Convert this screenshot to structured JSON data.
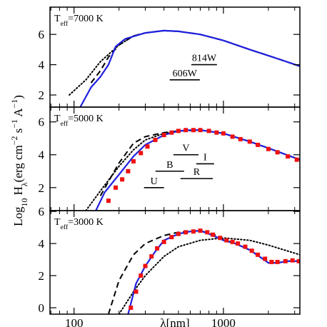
{
  "chart_data": [
    {
      "type": "line",
      "xlim": [
        69,
        3250
      ],
      "ylim": [
        1.2,
        7.8
      ],
      "log_x": true,
      "xticks": [
        100,
        1000
      ],
      "xminorticks": [
        70,
        80,
        90,
        200,
        300,
        400,
        500,
        600,
        700,
        800,
        900,
        2000,
        3000
      ],
      "yticks": [
        2,
        4,
        6
      ],
      "annotation": [
        {
          "text": "T"
        },
        {
          "text": "eff",
          "shift": "sub"
        },
        {
          "text": "=7000 K"
        }
      ],
      "bands": [
        {
          "label": "606W",
          "x": [
            437,
            695
          ],
          "y": 3.0
        },
        {
          "label": "814W",
          "x": [
            610,
            905
          ],
          "y": 4.0
        }
      ],
      "series": [
        {
          "style": "dotted",
          "color": "#000000",
          "x": [
            93,
            120,
            150,
            200,
            250,
            300,
            400,
            500,
            700,
            1000,
            1500,
            2000,
            3250
          ],
          "values": [
            2.0,
            3.0,
            4.2,
            5.3,
            5.9,
            6.1,
            6.25,
            6.2,
            6.0,
            5.6,
            5.0,
            4.6,
            3.9
          ]
        },
        {
          "style": "dashed",
          "color": "#000000",
          "x": [
            130,
            150,
            170,
            200,
            250,
            300,
            400,
            500,
            700,
            1000,
            1500,
            2000,
            3250
          ],
          "values": [
            2.8,
            3.6,
            4.5,
            5.3,
            5.9,
            6.1,
            6.25,
            6.2,
            6.0,
            5.6,
            5.0,
            4.6,
            3.9
          ]
        },
        {
          "style": "solid",
          "color": "#1f1fe0",
          "x": [
            110,
            130,
            150,
            170,
            190,
            220,
            300,
            400,
            500,
            700,
            1000,
            1500,
            2000,
            3250
          ],
          "values": [
            1.2,
            2.5,
            3.2,
            4.0,
            5.2,
            5.7,
            6.1,
            6.25,
            6.2,
            6.0,
            5.6,
            5.0,
            4.6,
            3.9
          ]
        }
      ]
    },
    {
      "type": "line",
      "xlim": [
        69,
        3250
      ],
      "ylim": [
        0.6,
        6.9
      ],
      "log_x": true,
      "xticks": [
        100,
        1000
      ],
      "xminorticks": [
        70,
        80,
        90,
        200,
        300,
        400,
        500,
        600,
        700,
        800,
        900,
        2000,
        3000
      ],
      "yticks": [
        2,
        4,
        6
      ],
      "ylabel": [
        {
          "text": "Log"
        },
        {
          "text": "10",
          "shift": "sub"
        },
        {
          "text": " H"
        },
        {
          "text": "λ",
          "shift": "sub"
        },
        {
          "text": "(erg cm"
        },
        {
          "text": "−2",
          "shift": "super"
        },
        {
          "text": " s"
        },
        {
          "text": "−1",
          "shift": "super"
        },
        {
          "text": " A"
        },
        {
          "text": "−1",
          "shift": "super"
        },
        {
          "text": ")"
        }
      ],
      "annotation": [
        {
          "text": "T"
        },
        {
          "text": "eff",
          "shift": "sub"
        },
        {
          "text": "=5000 K"
        }
      ],
      "bands": [
        {
          "label": "U",
          "x": [
            294,
            400
          ],
          "y": 2.0
        },
        {
          "label": "B",
          "x": [
            351,
            545
          ],
          "y": 3.0
        },
        {
          "label": "V",
          "x": [
            463,
            681
          ],
          "y": 4.0
        },
        {
          "label": "R",
          "x": [
            516,
            850
          ],
          "y": 2.55
        },
        {
          "label": "I",
          "x": [
            658,
            866
          ],
          "y": 3.45
        }
      ],
      "series": [
        {
          "style": "dotted",
          "color": "#000000",
          "x": [
            120,
            150,
            200,
            250,
            300,
            400,
            500,
            700,
            1000,
            1500,
            2000,
            3250
          ],
          "values": [
            0.6,
            1.8,
            3.3,
            4.3,
            4.9,
            5.3,
            5.45,
            5.5,
            5.3,
            4.8,
            4.4,
            3.7
          ]
        },
        {
          "style": "dashed",
          "color": "#000000",
          "x": [
            150,
            200,
            250,
            300,
            400,
            500,
            700,
            1000,
            1500,
            2000,
            3250
          ],
          "values": [
            1.5,
            3.5,
            4.7,
            5.1,
            5.35,
            5.45,
            5.5,
            5.3,
            4.8,
            4.4,
            3.7
          ]
        },
        {
          "style": "solid",
          "color": "#1f1fe0",
          "x": [
            140,
            160,
            200,
            250,
            300,
            400,
            500,
            600,
            700,
            1000,
            1500,
            2000,
            3250
          ],
          "values": [
            0.6,
            1.7,
            2.8,
            3.9,
            4.6,
            5.2,
            5.45,
            5.5,
            5.5,
            5.3,
            4.8,
            4.4,
            3.7
          ]
        },
        {
          "style": "markers",
          "color": "#ee1111",
          "x": [
            170,
            190,
            210,
            230,
            250,
            280,
            310,
            350,
            400,
            450,
            500,
            560,
            630,
            700,
            800,
            900,
            1000,
            1150,
            1300,
            1500,
            1700,
            2000,
            2300,
            2700,
            3100
          ],
          "values": [
            1.2,
            2.0,
            2.5,
            3.0,
            3.6,
            4.1,
            4.5,
            4.9,
            5.2,
            5.35,
            5.45,
            5.5,
            5.5,
            5.5,
            5.45,
            5.35,
            5.3,
            5.1,
            4.95,
            4.8,
            4.6,
            4.35,
            4.15,
            3.9,
            3.7
          ]
        }
      ]
    },
    {
      "type": "line",
      "xlim": [
        69,
        3250
      ],
      "ylim": [
        -0.4,
        6.05
      ],
      "log_x": true,
      "xticks": [
        100,
        1000
      ],
      "xminorticks": [
        70,
        80,
        90,
        200,
        300,
        400,
        500,
        600,
        700,
        800,
        900,
        2000,
        3000
      ],
      "xtick_labels": true,
      "xlabel": "λ[nm]",
      "yticks": [
        0,
        2,
        4,
        6
      ],
      "annotation": [
        {
          "text": "T"
        },
        {
          "text": "eff",
          "shift": "sub"
        },
        {
          "text": "=3000 K"
        }
      ],
      "series": [
        {
          "style": "dotted",
          "color": "#000000",
          "x": [
            200,
            250,
            300,
            400,
            500,
            700,
            1000,
            1500,
            2000,
            3250
          ],
          "values": [
            -0.4,
            1.0,
            2.0,
            3.2,
            3.8,
            4.2,
            4.35,
            4.2,
            3.9,
            3.3
          ]
        },
        {
          "style": "dashed",
          "color": "#000000",
          "x": [
            170,
            200,
            250,
            300,
            400,
            500,
            700,
            900,
            1000,
            1200,
            1500,
            1800,
            2000,
            2300,
            2700,
            3250
          ],
          "values": [
            -0.4,
            1.7,
            3.3,
            4.0,
            4.5,
            4.7,
            4.8,
            4.5,
            4.25,
            4.0,
            3.6,
            3.1,
            2.8,
            2.8,
            2.9,
            2.9
          ]
        },
        {
          "style": "solid",
          "color": "#1f1fe0",
          "x": [
            230,
            260,
            300,
            350,
            400,
            500,
            600,
            700,
            800,
            900,
            1000,
            1200,
            1500,
            1800,
            2000,
            2300,
            2700,
            3250
          ],
          "values": [
            -0.4,
            1.5,
            2.6,
            3.5,
            4.2,
            4.6,
            4.75,
            4.8,
            4.6,
            4.4,
            4.2,
            4.0,
            3.6,
            3.1,
            2.8,
            2.8,
            2.9,
            2.9
          ]
        },
        {
          "style": "markers",
          "color": "#ee1111",
          "x": [
            240,
            260,
            280,
            300,
            330,
            360,
            400,
            450,
            500,
            560,
            630,
            700,
            780,
            850,
            950,
            1050,
            1150,
            1250,
            1400,
            1550,
            1700,
            1900,
            2100,
            2300,
            2600,
            2900,
            3200
          ],
          "values": [
            0.0,
            1.0,
            2.0,
            2.6,
            3.2,
            3.7,
            4.1,
            4.4,
            4.6,
            4.7,
            4.75,
            4.8,
            4.7,
            4.55,
            4.35,
            4.2,
            4.1,
            4.0,
            3.8,
            3.55,
            3.3,
            3.05,
            2.85,
            2.85,
            2.9,
            2.95,
            2.9
          ]
        }
      ]
    }
  ]
}
